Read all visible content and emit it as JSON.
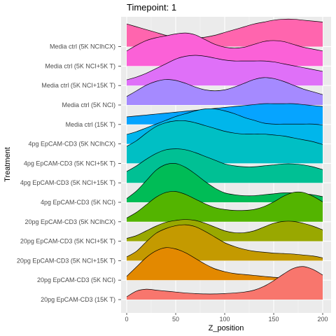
{
  "chart_data": {
    "type": "ridgeline",
    "title": "Timepoint: 1",
    "xlabel": "Z_position",
    "ylabel": "Treatment",
    "xlim": [
      0,
      200
    ],
    "xticks": [
      0,
      50,
      100,
      150,
      200
    ],
    "grid": true,
    "legend": "none",
    "x": [
      0,
      10,
      20,
      30,
      40,
      50,
      60,
      70,
      80,
      90,
      100,
      110,
      120,
      130,
      140,
      150,
      160,
      170,
      180,
      190,
      200
    ],
    "series": [
      {
        "name": "20pg EpCAM-CD3 (15K T)",
        "color": "#F8766D",
        "density": [
          0.15,
          0.45,
          0.55,
          0.5,
          0.45,
          0.4,
          0.35,
          0.32,
          0.3,
          0.3,
          0.32,
          0.35,
          0.4,
          0.5,
          0.7,
          1.0,
          1.35,
          1.65,
          1.75,
          1.6,
          1.3
        ]
      },
      {
        "name": "20pg EpCAM-CD3 (5K NCI)",
        "color": "#E38900",
        "density": [
          0.2,
          0.7,
          1.2,
          1.55,
          1.72,
          1.65,
          1.45,
          1.15,
          0.85,
          0.6,
          0.45,
          0.35,
          0.3,
          0.25,
          0.2,
          0.15,
          0.12,
          0.1,
          0.05,
          0.05,
          0.05
        ]
      },
      {
        "name": "20pg EpCAM-CD3 (5K NCI+15K T)",
        "color": "#C49A00",
        "density": [
          0.2,
          0.5,
          1.0,
          1.45,
          1.7,
          1.85,
          1.9,
          1.8,
          1.55,
          1.25,
          0.95,
          0.75,
          0.6,
          0.5,
          0.45,
          0.4,
          0.38,
          0.35,
          0.3,
          0.25,
          0.15
        ]
      },
      {
        "name": "20pg EpCAM-CD3 (5K NCI+5K T)",
        "color": "#99A800",
        "density": [
          0.15,
          0.3,
          0.55,
          0.8,
          1.0,
          1.1,
          1.15,
          1.1,
          0.95,
          0.75,
          0.55,
          0.45,
          0.45,
          0.55,
          0.75,
          0.95,
          1.05,
          1.05,
          0.95,
          0.8,
          0.6
        ]
      },
      {
        "name": "20pg EpCAM-CD3 (5K NCIhCX)",
        "color": "#53B400",
        "density": [
          0.2,
          0.5,
          0.9,
          1.3,
          1.55,
          1.6,
          1.45,
          1.2,
          0.95,
          0.75,
          0.65,
          0.6,
          0.6,
          0.65,
          0.8,
          1.05,
          1.35,
          1.55,
          1.55,
          1.35,
          1.05
        ]
      },
      {
        "name": "4pg EpCAM-CD3 (5K NCI)",
        "color": "#00BC56",
        "density": [
          0.2,
          0.6,
          1.15,
          1.7,
          2.0,
          2.05,
          1.85,
          1.5,
          1.1,
          0.75,
          0.5,
          0.4,
          0.35,
          0.35,
          0.4,
          0.45,
          0.5,
          0.5,
          0.45,
          0.4,
          0.3
        ]
      },
      {
        "name": "4pg EpCAM-CD3 (5K NCI+15K T)",
        "color": "#00C094",
        "density": [
          0.6,
          0.9,
          1.25,
          1.55,
          1.75,
          1.8,
          1.75,
          1.6,
          1.4,
          1.2,
          1.0,
          0.9,
          0.85,
          0.85,
          0.9,
          0.95,
          1.0,
          1.0,
          0.95,
          0.85,
          0.7
        ]
      },
      {
        "name": "4pg EpCAM-CD3 (5K NCI+5K T)",
        "color": "#00BFC4",
        "density": [
          0.9,
          1.2,
          1.6,
          1.95,
          2.15,
          2.25,
          2.25,
          2.15,
          2.0,
          1.85,
          1.7,
          1.6,
          1.55,
          1.55,
          1.55,
          1.5,
          1.45,
          1.35,
          1.25,
          1.15,
          1.0
        ]
      },
      {
        "name": "4pg EpCAM-CD3 (5K NCIhCX)",
        "color": "#00B6EB",
        "density": [
          0.5,
          0.65,
          0.85,
          1.05,
          1.25,
          1.45,
          1.6,
          1.75,
          1.85,
          1.85,
          1.75,
          1.6,
          1.4,
          1.25,
          1.1,
          1.05,
          1.05,
          1.05,
          1.05,
          1.05,
          1.0
        ]
      },
      {
        "name": "Media ctrl (15K T)",
        "color": "#06A4FF",
        "density": [
          0.4,
          0.45,
          0.5,
          0.55,
          0.6,
          0.65,
          0.7,
          0.75,
          0.8,
          0.85,
          0.9,
          0.95,
          1.0,
          1.05,
          1.1,
          1.1,
          1.1,
          1.1,
          1.05,
          1.0,
          0.95
        ]
      },
      {
        "name": "Media ctrl (5K NCI)",
        "color": "#A58AFF",
        "density": [
          0.45,
          0.75,
          1.05,
          1.25,
          1.35,
          1.3,
          1.15,
          0.95,
          0.8,
          0.75,
          0.8,
          0.95,
          1.15,
          1.35,
          1.45,
          1.4,
          1.25,
          1.05,
          0.85,
          0.7,
          0.55
        ]
      },
      {
        "name": "Media ctrl (5K NCI+15K T)",
        "color": "#DF70F8",
        "density": [
          0.3,
          0.45,
          0.65,
          0.9,
          1.15,
          1.4,
          1.55,
          1.6,
          1.55,
          1.45,
          1.35,
          1.3,
          1.3,
          1.3,
          1.3,
          1.25,
          1.15,
          1.05,
          0.95,
          0.85,
          0.75
        ]
      },
      {
        "name": "Media ctrl (5K NCI+5K T)",
        "color": "#FB61D7",
        "density": [
          0.8,
          1.1,
          1.35,
          1.5,
          1.6,
          1.7,
          1.75,
          1.65,
          1.4,
          1.15,
          1.0,
          0.95,
          1.0,
          1.15,
          1.3,
          1.35,
          1.3,
          1.15,
          1.0,
          0.9,
          0.8
        ]
      },
      {
        "name": "Media ctrl (5K NCIhCX)",
        "color": "#FF65AE",
        "density": [
          1.2,
          1.05,
          0.9,
          0.75,
          0.6,
          0.5,
          0.45,
          0.45,
          0.5,
          0.6,
          0.75,
          0.9,
          1.05,
          1.2,
          1.3,
          1.4,
          1.45,
          1.45,
          1.4,
          1.35,
          1.3
        ]
      }
    ]
  }
}
